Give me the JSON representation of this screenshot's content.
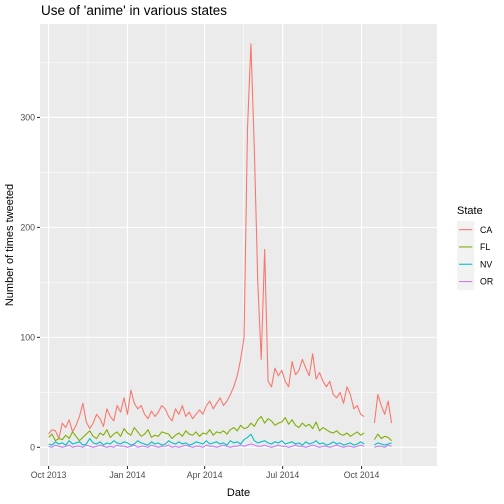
{
  "chart_data": {
    "type": "line",
    "title": "Use of 'anime' in various states",
    "xlabel": "Date",
    "ylabel": "Number of times tweeted",
    "x_ticks": [
      {
        "date": "2013-10-01",
        "label": "Oct 2013"
      },
      {
        "date": "2014-01-01",
        "label": "Jan 2014"
      },
      {
        "date": "2014-04-01",
        "label": "Apr 2014"
      },
      {
        "date": "2014-07-01",
        "label": "Jul 2014"
      },
      {
        "date": "2014-10-01",
        "label": "Oct 2014"
      }
    ],
    "y_ticks": [
      0,
      100,
      200,
      300
    ],
    "xlim": [
      "2013-09-21",
      "2014-12-28"
    ],
    "ylim": [
      -17,
      385
    ],
    "grid": true,
    "legend": {
      "title": "State",
      "placement": "right"
    },
    "x_start": "2013-10-01",
    "x_step_days": 4,
    "series": [
      {
        "name": "CA",
        "color": "#F8766D",
        "values": [
          12,
          16,
          15,
          8,
          22,
          18,
          25,
          14,
          20,
          28,
          40,
          23,
          17,
          22,
          30,
          26,
          19,
          35,
          28,
          24,
          38,
          32,
          45,
          30,
          52,
          40,
          35,
          38,
          30,
          26,
          33,
          28,
          32,
          38,
          35,
          28,
          24,
          35,
          30,
          38,
          28,
          32,
          26,
          30,
          34,
          30,
          38,
          42,
          35,
          40,
          45,
          38,
          42,
          48,
          55,
          65,
          80,
          100,
          290,
          367,
          270,
          150,
          80,
          180,
          60,
          55,
          72,
          65,
          70,
          60,
          55,
          78,
          66,
          70,
          80,
          72,
          65,
          85,
          62,
          68,
          60,
          55,
          60,
          48,
          45,
          50,
          40,
          55,
          48,
          35,
          38,
          30,
          28,
          null,
          null,
          22,
          48,
          38,
          30,
          42,
          22
        ]
      },
      {
        "name": "FL",
        "color": "#7CAE00",
        "values": [
          9,
          12,
          6,
          8,
          7,
          11,
          8,
          14,
          10,
          6,
          9,
          12,
          15,
          10,
          8,
          13,
          11,
          16,
          9,
          12,
          14,
          10,
          17,
          13,
          11,
          18,
          14,
          10,
          12,
          16,
          9,
          11,
          10,
          14,
          13,
          12,
          8,
          11,
          13,
          10,
          15,
          12,
          11,
          14,
          10,
          13,
          12,
          16,
          11,
          14,
          13,
          15,
          12,
          16,
          18,
          15,
          20,
          17,
          18,
          22,
          19,
          25,
          28,
          22,
          26,
          24,
          20,
          22,
          23,
          27,
          21,
          25,
          20,
          18,
          22,
          19,
          21,
          17,
          23,
          15,
          18,
          16,
          14,
          13,
          15,
          12,
          11,
          13,
          10,
          12,
          14,
          11,
          13,
          null,
          null,
          7,
          12,
          8,
          10,
          9,
          6
        ]
      },
      {
        "name": "NV",
        "color": "#00BFC4",
        "values": [
          3,
          2,
          5,
          3,
          4,
          2,
          6,
          3,
          4,
          5,
          2,
          3,
          8,
          4,
          3,
          5,
          2,
          4,
          3,
          6,
          4,
          3,
          5,
          4,
          2,
          3,
          6,
          4,
          3,
          2,
          5,
          3,
          4,
          2,
          3,
          6,
          4,
          3,
          5,
          3,
          4,
          2,
          3,
          5,
          4,
          3,
          6,
          3,
          4,
          5,
          3,
          4,
          2,
          6,
          4,
          5,
          3,
          7,
          9,
          12,
          6,
          4,
          5,
          6,
          4,
          3,
          5,
          4,
          6,
          3,
          4,
          5,
          3,
          4,
          2,
          5,
          3,
          4,
          6,
          3,
          4,
          2,
          3,
          5,
          3,
          4,
          2,
          3,
          4,
          2,
          3,
          5,
          3,
          null,
          null,
          2,
          4,
          3,
          2,
          3,
          4
        ]
      },
      {
        "name": "OR",
        "color": "#C77CFF",
        "values": [
          1,
          0,
          2,
          1,
          0,
          1,
          2,
          0,
          1,
          1,
          0,
          2,
          1,
          0,
          1,
          2,
          1,
          0,
          1,
          0,
          2,
          1,
          1,
          0,
          1,
          2,
          0,
          1,
          1,
          0,
          2,
          1,
          0,
          1,
          1,
          2,
          0,
          1,
          0,
          1,
          2,
          1,
          0,
          1,
          1,
          0,
          2,
          1,
          1,
          0,
          1,
          2,
          1,
          0,
          1,
          1,
          2,
          1,
          2,
          3,
          2,
          1,
          1,
          2,
          1,
          0,
          1,
          2,
          1,
          1,
          0,
          1,
          2,
          1,
          1,
          0,
          1,
          2,
          1,
          0,
          1,
          1,
          0,
          1,
          2,
          1,
          0,
          1,
          1,
          0,
          1,
          2,
          1,
          null,
          null,
          0,
          1,
          1,
          0,
          2,
          1
        ]
      }
    ]
  }
}
